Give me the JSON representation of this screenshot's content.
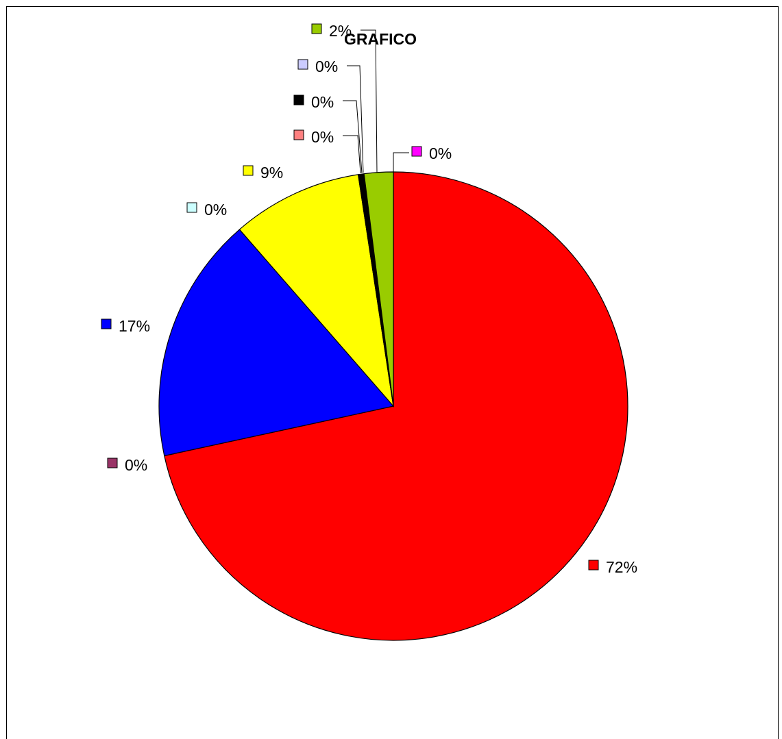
{
  "chart_data": {
    "type": "pie",
    "title": "GRAFICO",
    "start_angle": "12 o'clock",
    "direction": "clockwise",
    "slices": [
      {
        "value": 0.0,
        "label": "0%",
        "color": "#FF00FF"
      },
      {
        "value": 71.6,
        "label": "72%",
        "color": "#FF0000"
      },
      {
        "value": 0.0,
        "label": "0%",
        "color": "#993366"
      },
      {
        "value": 17.0,
        "label": "17%",
        "color": "#0000FF"
      },
      {
        "value": 0.0,
        "label": "0%",
        "color": "#CCFFFF"
      },
      {
        "value": 9.0,
        "label": "9%",
        "color": "#FFFF00"
      },
      {
        "value": 0.0,
        "label": "0%",
        "color": "#FF8080"
      },
      {
        "value": 0.4,
        "label": "0%",
        "color": "#000000"
      },
      {
        "value": 0.0,
        "label": "0%",
        "color": "#CCCCFF"
      },
      {
        "value": 2.0,
        "label": "2%",
        "color": "#99CC00"
      }
    ]
  }
}
